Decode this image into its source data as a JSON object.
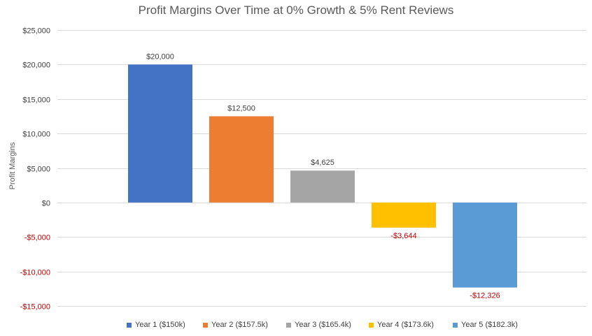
{
  "chart_data": {
    "type": "bar",
    "title": "Profit Margins Over Time at 0% Growth & 5% Rent Reviews",
    "ylabel": "Profit Margins",
    "xlabel": "",
    "ylim": [
      -15000,
      25000
    ],
    "yticks": [
      25000,
      20000,
      15000,
      10000,
      5000,
      0,
      -5000,
      -10000,
      -15000
    ],
    "ytick_labels": [
      "$25,000",
      "$20,000",
      "$15,000",
      "$10,000",
      "$5,000",
      "$0",
      "-$5,000",
      "-$10,000",
      "-$15,000"
    ],
    "grid": true,
    "legend_position": "bottom",
    "negative_label_color": "#C00000",
    "positive_label_color": "#404040",
    "series": [
      {
        "name": "Year 1 ($150k)",
        "values": [
          20000
        ],
        "label": "$20,000",
        "color": "#4472C4"
      },
      {
        "name": "Year 2 ($157.5k)",
        "values": [
          12500
        ],
        "label": "$12,500",
        "color": "#ED7D31"
      },
      {
        "name": "Year 3 ($165.4k)",
        "values": [
          4625
        ],
        "label": "$4,625",
        "color": "#A5A5A5"
      },
      {
        "name": "Year 4 ($173.6k)",
        "values": [
          -3644
        ],
        "label": "-$3,644",
        "color": "#FFC000"
      },
      {
        "name": "Year 5 ($182.3k)",
        "values": [
          -12326
        ],
        "label": "-$12,326",
        "color": "#5B9BD5"
      }
    ]
  }
}
